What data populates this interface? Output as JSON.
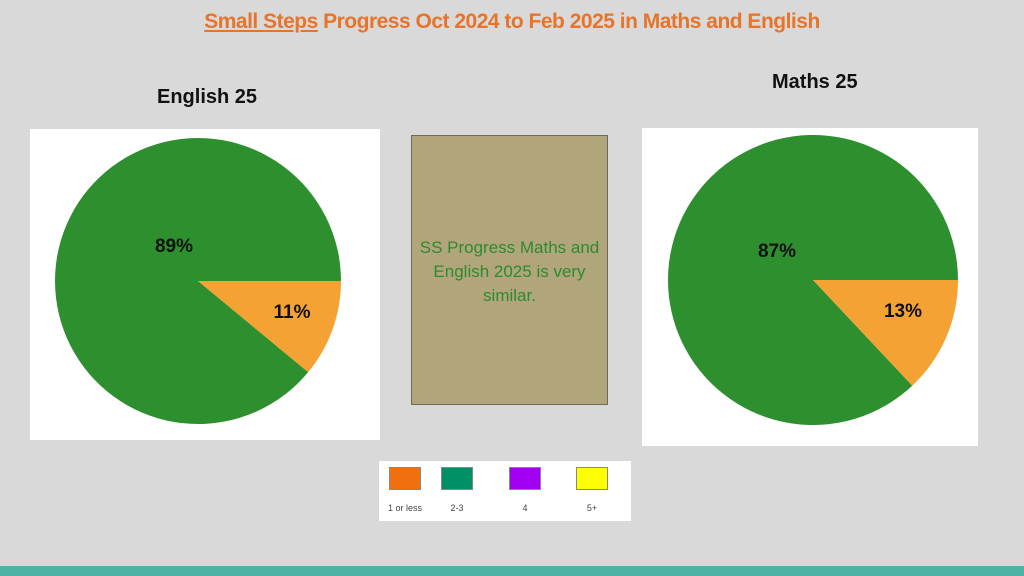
{
  "title": {
    "underlined": "Small Steps",
    "rest": " Progress Oct 2024 to Feb 2025 in Maths and English"
  },
  "colors": {
    "green": "#2e8f2e",
    "orange": "#f4a234",
    "title": "#e8742a"
  },
  "chart_data": [
    {
      "type": "pie",
      "title": "English 25",
      "slices": [
        {
          "label": "89%",
          "value": 89
        },
        {
          "label": "11%",
          "value": 11
        }
      ]
    },
    {
      "type": "pie",
      "title": "Maths 25",
      "slices": [
        {
          "label": "87%",
          "value": 87
        },
        {
          "label": "13%",
          "value": 13
        }
      ]
    }
  ],
  "note": {
    "text": "SS Progress Maths and English 2025 is very similar."
  },
  "legend": {
    "items": [
      {
        "label": "1 or less",
        "color": "#f07010"
      },
      {
        "label": "2-3",
        "color": "#009068"
      },
      {
        "label": "4",
        "color": "#a000f0"
      },
      {
        "label": "5+",
        "color": "#ffff00"
      }
    ]
  }
}
